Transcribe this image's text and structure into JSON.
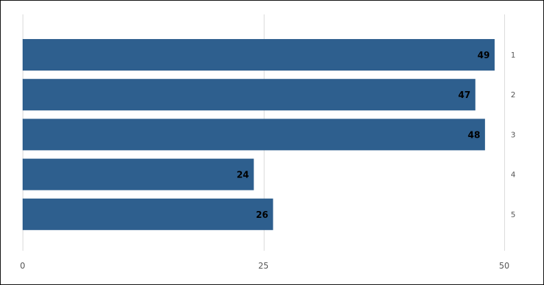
{
  "chart_data": {
    "type": "bar",
    "orientation": "horizontal",
    "categories": [
      "1",
      "2",
      "3",
      "4",
      "5"
    ],
    "values": [
      49,
      47,
      48,
      24,
      26
    ],
    "xlim": [
      0,
      50
    ],
    "xticks": [
      "0",
      "25",
      "50"
    ],
    "grid": true,
    "category_axis_side": "right",
    "data_labels": [
      "49",
      "47",
      "48",
      "24",
      "26"
    ],
    "colors": {
      "bar": "#2e5f8e",
      "grid": "#d9d9d9",
      "label": "#000000"
    }
  }
}
